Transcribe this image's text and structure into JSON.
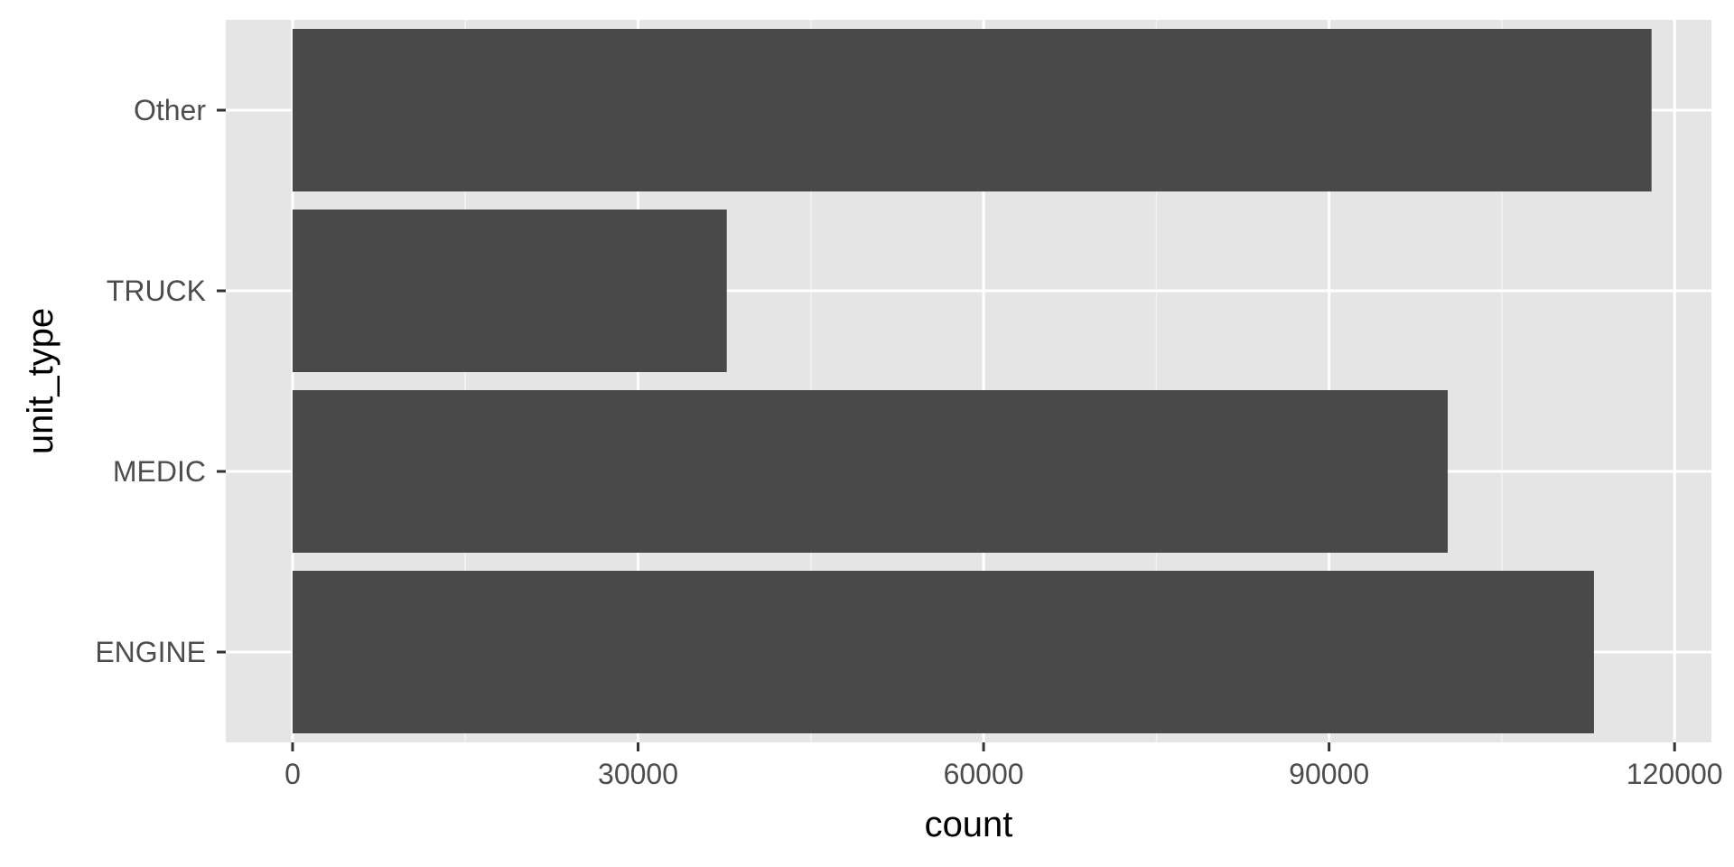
{
  "chart_data": {
    "type": "bar",
    "orientation": "horizontal",
    "categories": [
      "ENGINE",
      "MEDIC",
      "TRUCK",
      "Other"
    ],
    "values": [
      113000,
      100300,
      37700,
      118000
    ],
    "xlabel": "count",
    "ylabel": "unit_type",
    "xlim": [
      -5800,
      123200
    ],
    "x_ticks": [
      0,
      30000,
      60000,
      90000,
      120000
    ],
    "x_tick_labels": [
      "0",
      "30000",
      "60000",
      "90000",
      "120000"
    ],
    "grid": true,
    "legend": "none",
    "colors": {
      "bar": "#494949",
      "panel": "#e5e5e5",
      "grid_major": "#ffffff",
      "grid_minor": "#f2f2f2",
      "tick": "#333333"
    }
  }
}
